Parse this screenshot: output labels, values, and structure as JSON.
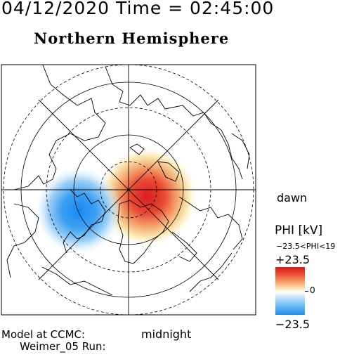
{
  "header": {
    "date_time": "04/12/2020 Time = 02:45:00",
    "hemisphere_title": "Northern Hemisphere"
  },
  "map": {
    "projection": "polar",
    "orientation_labels": {
      "dawn": "dawn",
      "midnight": "midnight"
    },
    "colors": {
      "positive": "#d41a1a",
      "negative": "#1f8cf0",
      "neutral": "#ffffff"
    }
  },
  "legend": {
    "title": "PHI [kV]",
    "range_text": "−23.5<PHI<19",
    "max_label": "+23.5",
    "zero_label": "0",
    "min_label": "−23.5"
  },
  "footer": {
    "line1": "Model at CCMC:",
    "line2": "Weimer_05 Run:"
  }
}
